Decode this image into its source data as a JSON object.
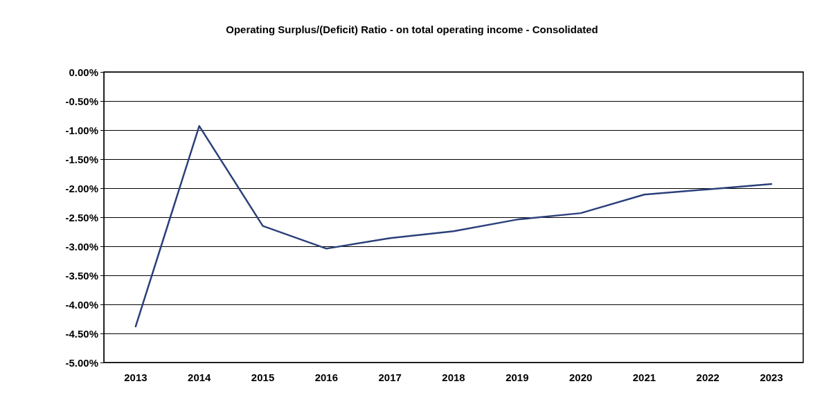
{
  "chart_data": {
    "type": "line",
    "title": "Operating Surplus/(Deficit) Ratio - on total operating income - Consolidated",
    "categories": [
      "2013",
      "2014",
      "2015",
      "2016",
      "2017",
      "2018",
      "2019",
      "2020",
      "2021",
      "2022",
      "2023"
    ],
    "series": [
      {
        "color": "#2b3f7a",
        "values": [
          -4.38,
          -0.93,
          -2.65,
          -3.04,
          -2.86,
          -2.74,
          -2.54,
          -2.43,
          -2.11,
          -2.02,
          -1.93
        ]
      }
    ],
    "ylim": [
      -5,
      0
    ],
    "yticks": [
      {
        "value": 0,
        "label": "0.00%"
      },
      {
        "value": -0.5,
        "label": "-0.50%"
      },
      {
        "value": -1,
        "label": "-1.00%"
      },
      {
        "value": -1.5,
        "label": "-1.50%"
      },
      {
        "value": -2,
        "label": "-2.00%"
      },
      {
        "value": -2.5,
        "label": "-2.50%"
      },
      {
        "value": -3,
        "label": "-3.00%"
      },
      {
        "value": -3.5,
        "label": "-3.50%"
      },
      {
        "value": -4,
        "label": "-4.00%"
      },
      {
        "value": -4.5,
        "label": "-4.50%"
      },
      {
        "value": -5,
        "label": "-5.00%"
      }
    ],
    "grid": "y",
    "marker": "none",
    "line_style": "solid"
  }
}
